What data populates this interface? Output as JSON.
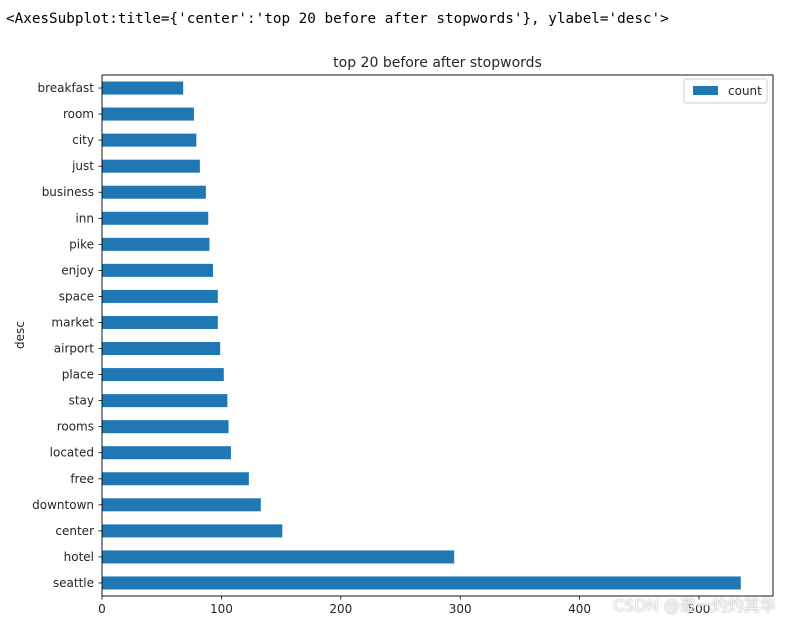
{
  "output": {
    "repr_text": "<AxesSubplot:title={'center':'top 20 before after stopwords'}, ylabel='desc'>"
  },
  "watermark": "CSDN @邀一灼灼其华",
  "colors": {
    "bar": "#1f77b4",
    "axis": "#000000",
    "text": "#262626",
    "background": "#ffffff"
  },
  "chart_data": {
    "type": "bar",
    "orientation": "horizontal",
    "title": "top 20 before after stopwords",
    "xlabel": "",
    "ylabel": "desc",
    "categories": [
      "seattle",
      "hotel",
      "center",
      "downtown",
      "free",
      "located",
      "rooms",
      "stay",
      "place",
      "airport",
      "market",
      "space",
      "enjoy",
      "pike",
      "inn",
      "business",
      "just",
      "city",
      "room",
      "breakfast"
    ],
    "series": [
      {
        "name": "count",
        "values": [
          535,
          295,
          151,
          133,
          123,
          108,
          106,
          105,
          102,
          99,
          97,
          97,
          93,
          90,
          89,
          87,
          82,
          79,
          77,
          68
        ]
      }
    ],
    "xlim": [
      0,
      562
    ],
    "xticks": [
      0,
      100,
      200,
      300,
      400,
      500
    ],
    "legend": {
      "position": "top-right",
      "entries": [
        "count"
      ]
    },
    "grid": false
  }
}
